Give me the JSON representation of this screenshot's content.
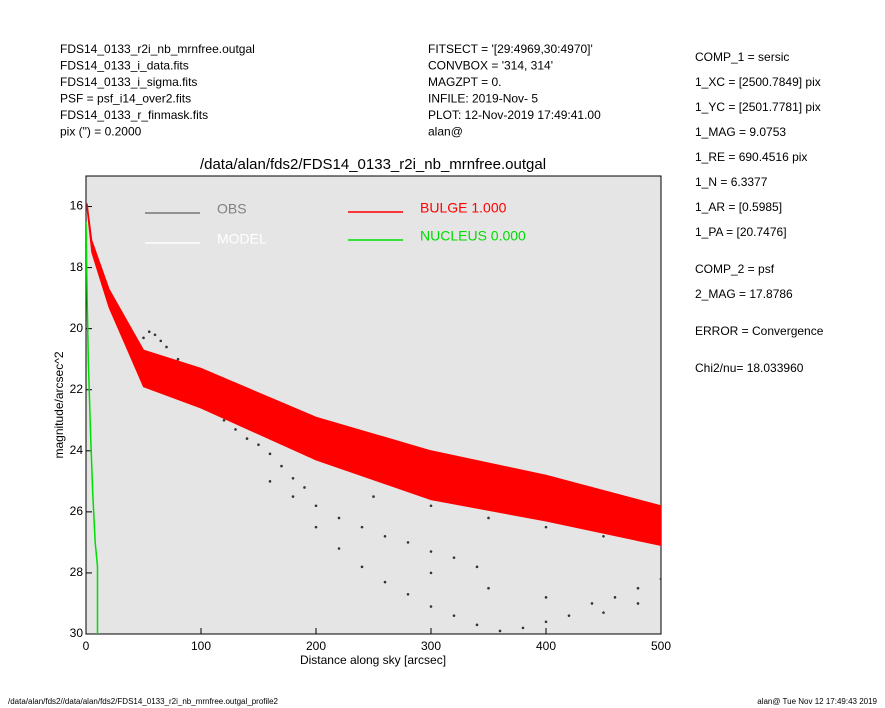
{
  "header": {
    "left": [
      "FDS14_0133_r2i_nb_mrnfree.outgal",
      "FDS14_0133_i_data.fits",
      "FDS14_0133_i_sigma.fits",
      "PSF     = psf_i14_over2.fits",
      "FDS14_0133_r_finmask.fits",
      "pix (\") =  0.2000"
    ],
    "middle": [
      "FITSECT = '[29:4969,30:4970]'",
      "CONVBOX = '314, 314'",
      "MAGZPT  =              0.",
      "INFILE: 2019-Nov- 5",
      "PLOT: 12-Nov-2019 17:49:41.00",
      "alan@"
    ]
  },
  "params": [
    "COMP_1  = sersic",
    "1_XC    = [2500.7849] pix",
    "1_YC    = [2501.7781] pix",
    "1_MAG   = 9.0753",
    "1_RE    = 690.4516 pix",
    "1_N     = 6.3377",
    "1_AR    = [0.5985]",
    "1_PA    = [20.7476]",
    "COMP_2  = psf",
    "2_MAG   = 17.8786",
    "ERROR   = Convergence",
    "Chi2/nu=      18.033960"
  ],
  "footer": {
    "left": "/data/alan/fds2//data/alan/fds2/FDS14_0133_r2i_nb_mrnfree.outgal_profile2",
    "right": "alan@  Tue Nov 12 17:49:43 2019"
  },
  "chart_data": {
    "type": "scatter",
    "title": "/data/alan/fds2/FDS14_0133_r2i_nb_mrnfree.outgal",
    "xlabel": "Distance along sky [arcsec]",
    "ylabel": "magnitude/arcsec^2",
    "xlim": [
      0,
      500
    ],
    "xticks": [
      0,
      100,
      200,
      300,
      400,
      500
    ],
    "ylim": [
      30,
      15
    ],
    "yticks": [
      16,
      18,
      20,
      22,
      24,
      26,
      28,
      30
    ],
    "y_inverted": true,
    "grid": false,
    "series": [
      {
        "name": "OBS",
        "color": "#808080",
        "kind": "points",
        "x": [
          40,
          50,
          55,
          60,
          65,
          70,
          80,
          90,
          100,
          110,
          120,
          130,
          140,
          150,
          160,
          170,
          180,
          100,
          110,
          120,
          130,
          140,
          150,
          160,
          170,
          180,
          190,
          160,
          180,
          200,
          220,
          240,
          260,
          280,
          300,
          320,
          340,
          200,
          220,
          240,
          260,
          280,
          300,
          320,
          340,
          360,
          380,
          400,
          420,
          440,
          460,
          480,
          500,
          250,
          300,
          350,
          400,
          450,
          500,
          300,
          350,
          400,
          450,
          480
        ],
        "values": [
          20.8,
          20.3,
          20.1,
          20.2,
          20.4,
          20.6,
          21.0,
          21.4,
          21.8,
          21.9,
          22.0,
          22.3,
          22.4,
          22.6,
          22.8,
          22.9,
          23.1,
          22.4,
          22.7,
          23.0,
          23.3,
          23.6,
          23.8,
          24.1,
          24.5,
          24.9,
          25.2,
          25.0,
          25.5,
          25.8,
          26.2,
          26.5,
          26.8,
          27.0,
          27.3,
          27.5,
          27.8,
          26.5,
          27.2,
          27.8,
          28.3,
          28.7,
          29.1,
          29.4,
          29.7,
          29.9,
          29.8,
          29.6,
          29.4,
          29.0,
          28.8,
          28.5,
          28.2,
          25.5,
          25.8,
          26.2,
          26.5,
          26.8,
          27.0,
          28.0,
          28.5,
          28.8,
          29.3,
          29.0
        ]
      },
      {
        "name": "MODEL",
        "color": "#ffffff",
        "kind": "line",
        "x": [
          1,
          5,
          20,
          50,
          100,
          200,
          300,
          400,
          500
        ],
        "values": [
          16.0,
          17.3,
          19.0,
          21.3,
          21.9,
          23.6,
          24.8,
          25.5,
          26.4
        ]
      },
      {
        "name": "BULGE  1.000",
        "color": "#ff0000",
        "kind": "band",
        "x": [
          1,
          5,
          20,
          50,
          100,
          200,
          300,
          400,
          500
        ],
        "values": [
          15.9,
          17.1,
          18.7,
          20.7,
          21.3,
          22.9,
          24.0,
          24.8,
          25.8
        ],
        "values2": [
          16.1,
          17.5,
          19.3,
          21.9,
          22.6,
          24.3,
          25.6,
          26.3,
          27.1
        ]
      },
      {
        "name": "NUCLEUS  0.000",
        "color": "#00dd00",
        "kind": "line",
        "x": [
          0,
          1,
          2,
          4,
          6,
          8,
          10,
          10
        ],
        "values": [
          16.5,
          19,
          21,
          23.5,
          25.5,
          27,
          27.8,
          30
        ]
      }
    ]
  }
}
